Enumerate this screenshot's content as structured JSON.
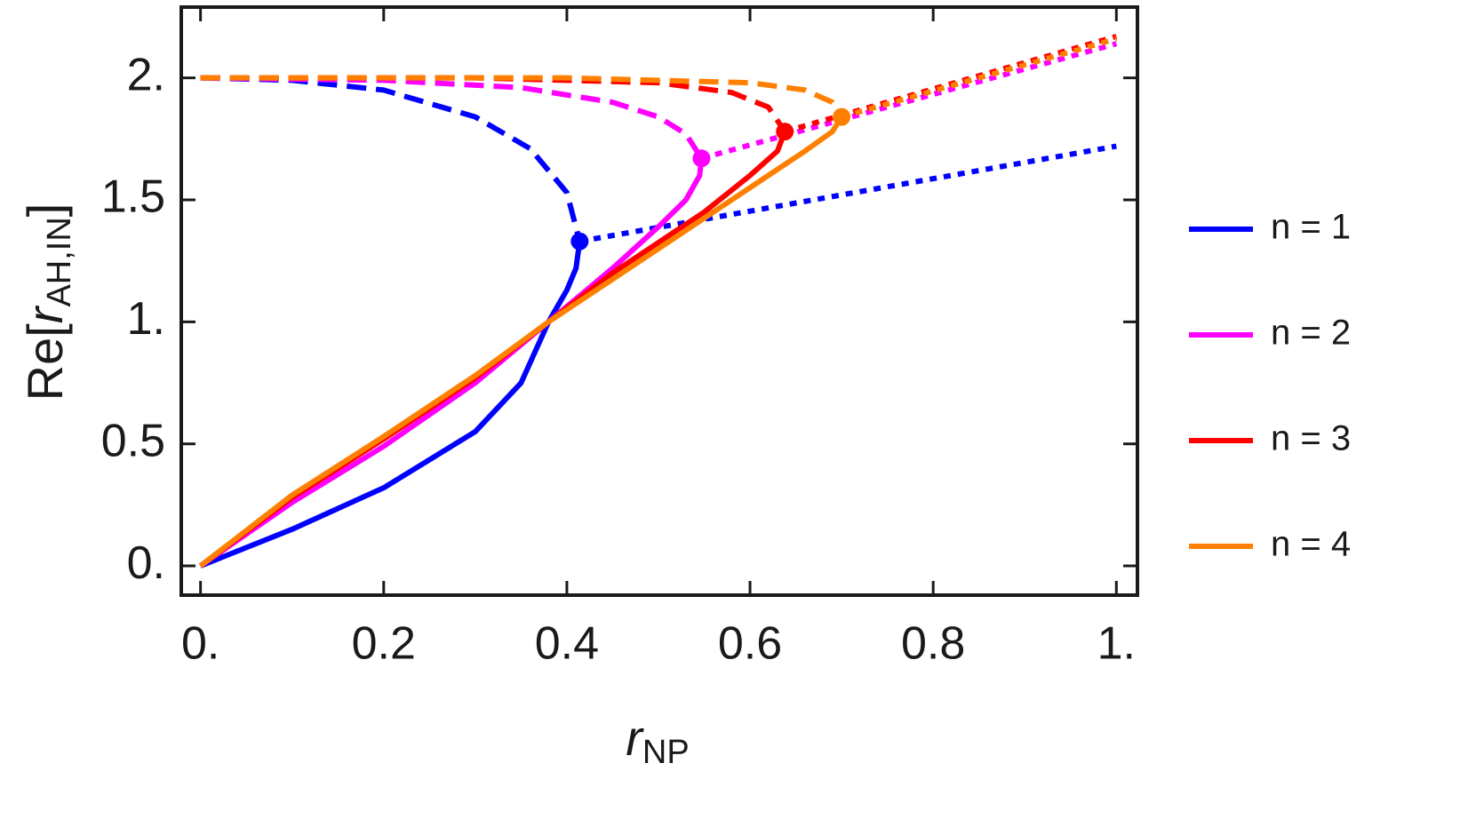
{
  "chart_data": {
    "type": "line",
    "xlabel": {
      "symbol": "r",
      "subscript": "NP"
    },
    "ylabel": {
      "prefix": "Re[",
      "symbol": "r",
      "subscript": "AH,IN",
      "suffix": "]"
    },
    "xlim": [
      -0.021,
      1.023
    ],
    "ylim": [
      -0.12,
      2.29
    ],
    "xticks": [
      {
        "value": 0,
        "label": "0."
      },
      0.2,
      0.4,
      0.6,
      0.8,
      {
        "value": 1,
        "label": "1."
      }
    ],
    "yticks": [
      {
        "value": 0,
        "label": "0."
      },
      0.5,
      {
        "value": 1,
        "label": "1."
      },
      1.5,
      {
        "value": 2,
        "label": "2."
      }
    ],
    "legend": "right",
    "series": [
      {
        "name": "n = 1",
        "color": "#0000ff",
        "solid": {
          "x": [
            0,
            0.1,
            0.2,
            0.3,
            0.35,
            0.38,
            0.4,
            0.41,
            0.414
          ],
          "values": [
            0,
            0.15,
            0.32,
            0.55,
            0.75,
            1.0,
            1.13,
            1.22,
            1.33
          ]
        },
        "dashed": {
          "x": [
            0,
            0.1,
            0.2,
            0.3,
            0.36,
            0.4,
            0.414
          ],
          "values": [
            2.0,
            1.99,
            1.95,
            1.84,
            1.71,
            1.53,
            1.33
          ]
        },
        "dotted": {
          "x": [
            0.414,
            1.0
          ],
          "values": [
            1.33,
            1.72
          ]
        },
        "turning_point": {
          "x": 0.414,
          "y": 1.33
        }
      },
      {
        "name": "n = 2",
        "color": "#ff00ff",
        "solid": {
          "x": [
            0,
            0.1,
            0.2,
            0.3,
            0.38,
            0.45,
            0.5,
            0.53,
            0.545,
            0.547
          ],
          "values": [
            0,
            0.26,
            0.49,
            0.75,
            1.0,
            1.22,
            1.39,
            1.5,
            1.6,
            1.67
          ]
        },
        "dashed": {
          "x": [
            0,
            0.2,
            0.35,
            0.45,
            0.5,
            0.53,
            0.547
          ],
          "values": [
            2.0,
            1.99,
            1.96,
            1.9,
            1.84,
            1.77,
            1.67
          ]
        },
        "dotted": {
          "x": [
            0.547,
            1.0
          ],
          "values": [
            1.67,
            2.14
          ]
        },
        "turning_point": {
          "x": 0.547,
          "y": 1.67
        }
      },
      {
        "name": "n = 3",
        "color": "#ff0000",
        "solid": {
          "x": [
            0,
            0.1,
            0.2,
            0.3,
            0.38,
            0.45,
            0.55,
            0.6,
            0.63,
            0.638
          ],
          "values": [
            0,
            0.28,
            0.52,
            0.77,
            1.0,
            1.2,
            1.45,
            1.6,
            1.7,
            1.78
          ]
        },
        "dashed": {
          "x": [
            0,
            0.3,
            0.5,
            0.58,
            0.62,
            0.638
          ],
          "values": [
            2.0,
            2.0,
            1.98,
            1.94,
            1.88,
            1.78
          ]
        },
        "dotted": {
          "x": [
            0.638,
            1.0
          ],
          "values": [
            1.78,
            2.17
          ]
        },
        "turning_point": {
          "x": 0.638,
          "y": 1.78
        }
      },
      {
        "name": "n = 4",
        "color": "#ff8000",
        "solid": {
          "x": [
            0,
            0.1,
            0.2,
            0.3,
            0.38,
            0.5,
            0.6,
            0.66,
            0.69,
            0.7
          ],
          "values": [
            0,
            0.29,
            0.53,
            0.78,
            1.0,
            1.3,
            1.55,
            1.7,
            1.78,
            1.84
          ]
        },
        "dashed": {
          "x": [
            0,
            0.4,
            0.6,
            0.66,
            0.69,
            0.7
          ],
          "values": [
            2.0,
            2.0,
            1.98,
            1.95,
            1.9,
            1.84
          ]
        },
        "dotted": {
          "x": [
            0.7,
            1.0
          ],
          "values": [
            1.84,
            2.16
          ]
        },
        "turning_point": {
          "x": 0.7,
          "y": 1.84
        }
      }
    ]
  }
}
